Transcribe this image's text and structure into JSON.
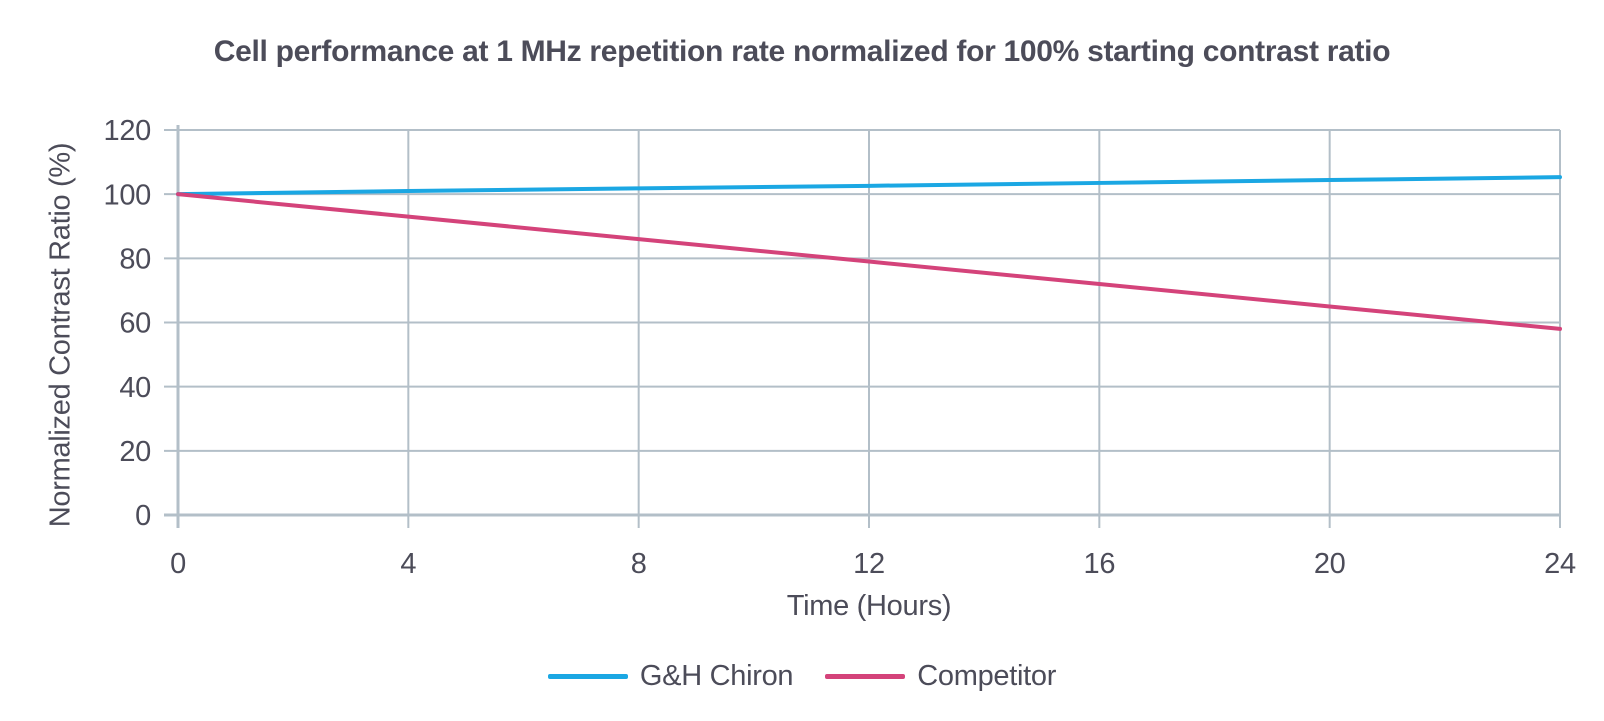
{
  "chart_data": {
    "type": "line",
    "title": "Cell performance at 1 MHz repetition rate normalized for 100% starting contrast ratio",
    "xlabel": "Time (Hours)",
    "ylabel": "Normalized Contrast Ratio (%)",
    "xlim": [
      0,
      24
    ],
    "ylim": [
      0,
      120
    ],
    "xticks": [
      0,
      4,
      8,
      12,
      16,
      20,
      24
    ],
    "yticks": [
      0,
      20,
      40,
      60,
      80,
      100,
      120
    ],
    "grid": true,
    "legend_position": "bottom",
    "x": [
      0,
      4,
      8,
      12,
      16,
      20,
      24
    ],
    "series": [
      {
        "name": "G&H Chiron",
        "color": "#1ba7e3",
        "values": [
          100,
          101,
          101.8,
          102.6,
          103.5,
          104.4,
          105.3
        ]
      },
      {
        "name": "Competitor",
        "color": "#d4437a",
        "values": [
          100,
          93,
          86,
          79,
          72,
          65,
          58
        ]
      }
    ],
    "colors": {
      "grid": "#b3bfc8",
      "text": "#4c4c59",
      "background": "#ffffff"
    }
  }
}
